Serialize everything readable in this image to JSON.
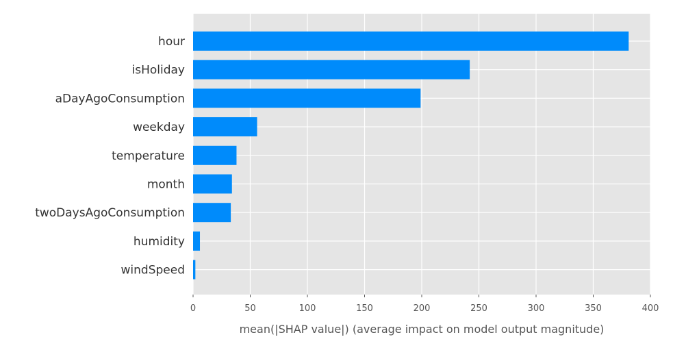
{
  "chart_data": {
    "type": "bar",
    "orientation": "horizontal",
    "title": "",
    "xlabel": "mean(|SHAP value|) (average impact on model output magnitude)",
    "ylabel": "",
    "categories": [
      "hour",
      "isHoliday",
      "aDayAgoConsumption",
      "weekday",
      "temperature",
      "month",
      "twoDaysAgoConsumption",
      "humidity",
      "windSpeed"
    ],
    "values": [
      381,
      242,
      199,
      56,
      38,
      34,
      33,
      6,
      2
    ],
    "xlim": [
      0,
      400
    ],
    "xticks": [
      0,
      50,
      100,
      150,
      200,
      250,
      300,
      350,
      400
    ],
    "xtick_labels": [
      "0",
      "50",
      "100",
      "150",
      "200",
      "250",
      "300",
      "350",
      "400"
    ],
    "grid": true,
    "legend": "none",
    "colors": {
      "bar": "#008bfb",
      "background": "#e5e5e5",
      "grid": "#ffffff"
    }
  }
}
